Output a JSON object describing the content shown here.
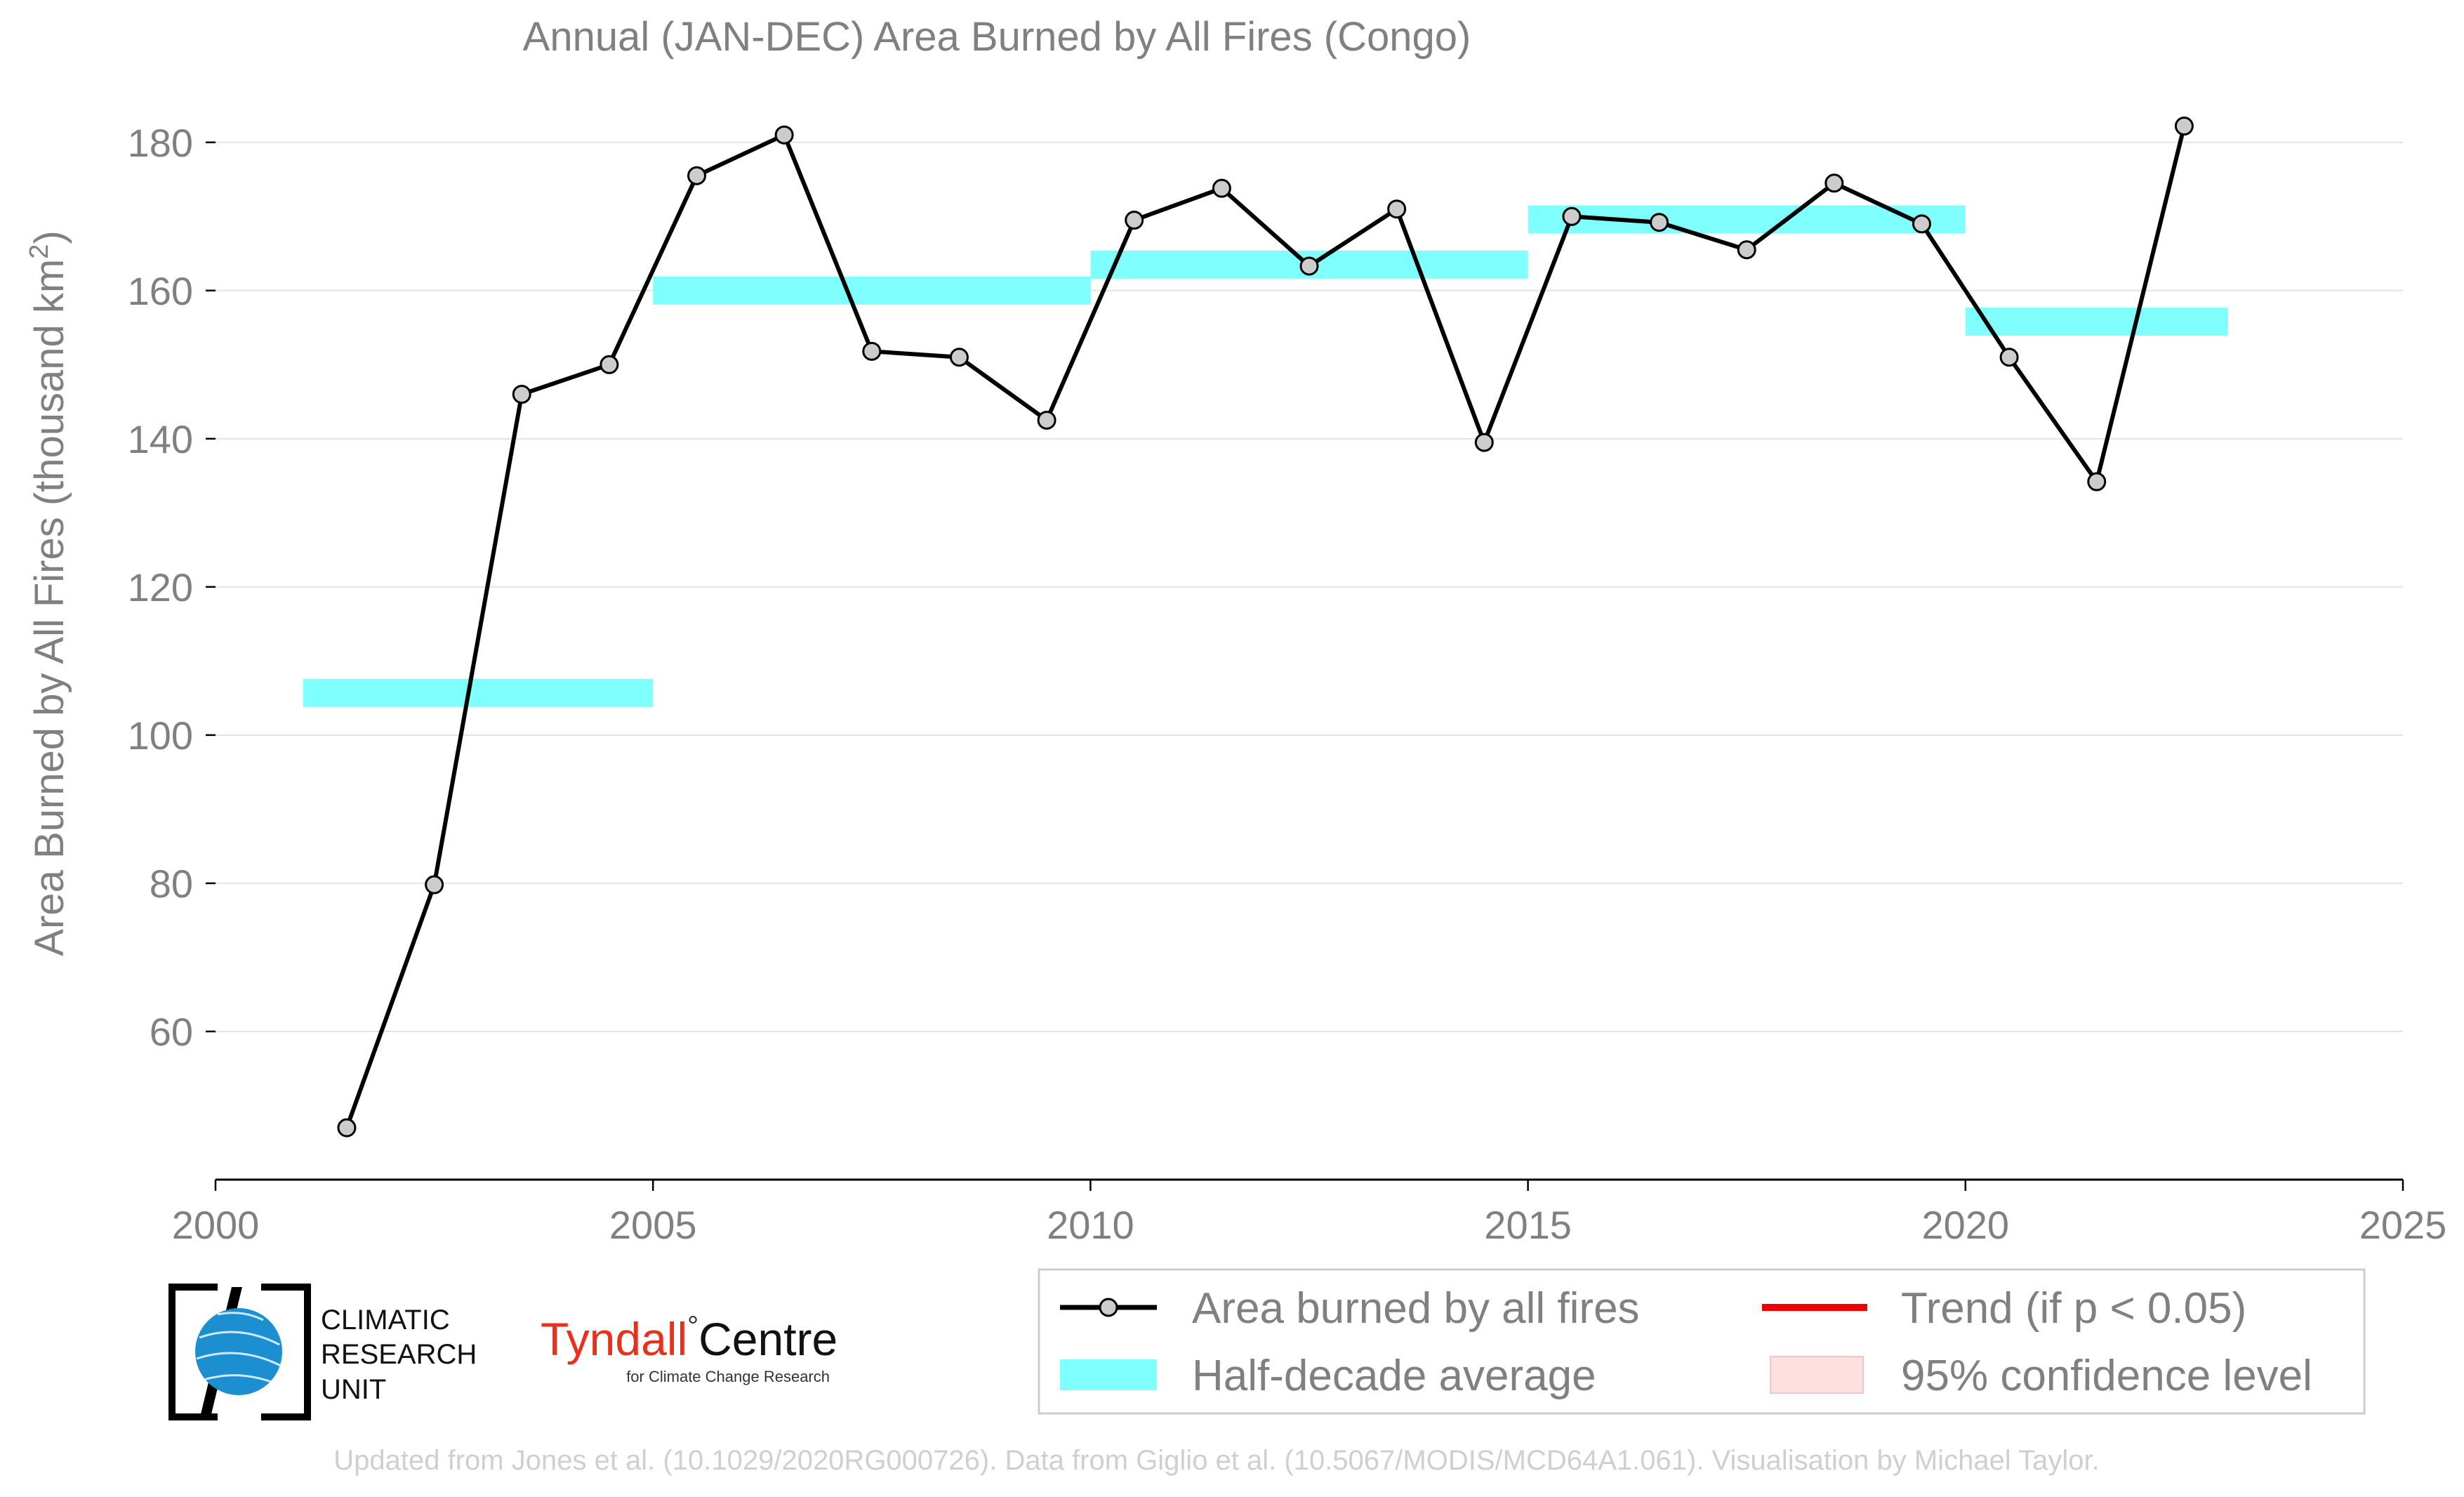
{
  "chart_data": {
    "type": "line",
    "title": "Annual (JAN-DEC) Area Burned by All Fires (Congo)",
    "ylabel": "Area Burned by All Fires (thousand km",
    "ylabel_superscript": "2",
    "ylabel_close": ")",
    "xlim": [
      2000,
      2025
    ],
    "ylim": [
      40,
      185
    ],
    "x_ticks": [
      2000,
      2005,
      2010,
      2015,
      2020,
      2025
    ],
    "y_ticks": [
      60,
      80,
      100,
      120,
      140,
      160,
      180
    ],
    "grid": true,
    "series": [
      {
        "name": "Area burned by all fires",
        "color": "#000000",
        "marker_fill": "#cccccc",
        "x": [
          2001.5,
          2002.5,
          2003.5,
          2004.5,
          2005.5,
          2006.5,
          2007.5,
          2008.5,
          2009.5,
          2010.5,
          2011.5,
          2012.5,
          2013.5,
          2014.5,
          2015.5,
          2016.5,
          2017.5,
          2018.5,
          2019.5,
          2020.5,
          2021.5,
          2022.5
        ],
        "y": [
          47,
          79.8,
          146,
          150,
          175.5,
          181,
          151.8,
          151,
          142.5,
          169.5,
          173.8,
          163.3,
          171,
          139.5,
          170,
          169.2,
          165.5,
          174.5,
          169,
          151,
          134.2,
          182.2
        ]
      }
    ],
    "half_decade_averages": {
      "name": "Half-decade average",
      "color": "#80ffff",
      "segments": [
        {
          "x0": 2001,
          "x1": 2005,
          "y": 105.7
        },
        {
          "x0": 2005,
          "x1": 2010,
          "y": 160
        },
        {
          "x0": 2010,
          "x1": 2015,
          "y": 163.5
        },
        {
          "x0": 2015,
          "x1": 2020,
          "y": 169.6
        },
        {
          "x0": 2020,
          "x1": 2023,
          "y": 155.8
        }
      ]
    },
    "legend": {
      "placement": "bottom-right",
      "entries": [
        {
          "key": "line",
          "label": "Area burned by all fires"
        },
        {
          "key": "trend",
          "label": "Trend (if p < 0.05)",
          "color": "#ee0000"
        },
        {
          "key": "avg",
          "label": "Half-decade average"
        },
        {
          "key": "ci",
          "label": "95% confidence level",
          "color": "#ffe0e0"
        }
      ]
    }
  },
  "logos": {
    "cru": [
      "CLIMATIC",
      "RESEARCH",
      "UNIT"
    ],
    "tyndall_main": "Tyndall",
    "tyndall_degree": "°",
    "tyndall_centre": "Centre",
    "tyndall_sub": "for Climate Change Research"
  },
  "footer": "Updated from Jones et al. (10.1029/2020RG000726). Data from Giglio et al. (10.5067/MODIS/MCD64A1.061). Visualisation by Michael Taylor."
}
